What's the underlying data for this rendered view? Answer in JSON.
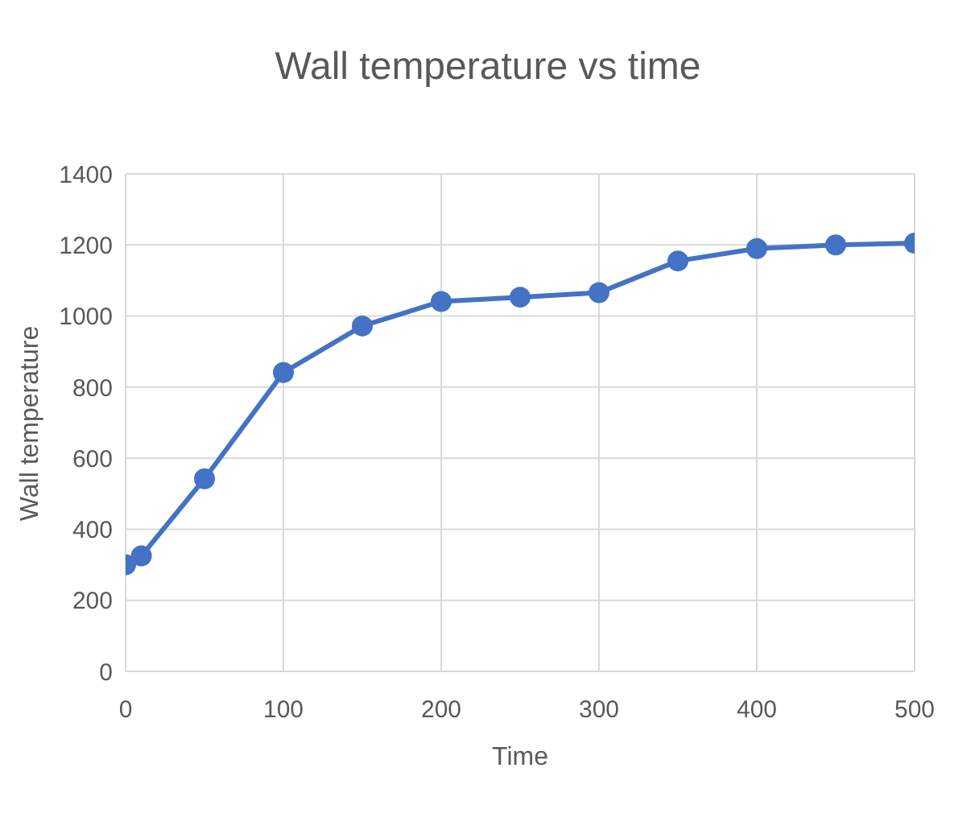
{
  "chart_data": {
    "type": "line",
    "title": "Wall temperature vs time",
    "xlabel": "Time",
    "ylabel": "Wall temperature",
    "x": [
      0,
      10,
      50,
      100,
      150,
      200,
      250,
      300,
      350,
      400,
      450,
      500
    ],
    "series": [
      {
        "color": "#4472c4",
        "values": [
          300,
          325,
          542,
          841,
          972,
          1041,
          1053,
          1066,
          1155,
          1190,
          1200,
          1205
        ]
      }
    ],
    "xlim": [
      0,
      500
    ],
    "xticks": [
      0,
      100,
      200,
      300,
      400,
      500
    ],
    "ylim": [
      0,
      1400
    ],
    "yticks": [
      0,
      200,
      400,
      600,
      800,
      1000,
      1200,
      1400
    ],
    "grid": true,
    "marker": "circle",
    "legend": false
  }
}
